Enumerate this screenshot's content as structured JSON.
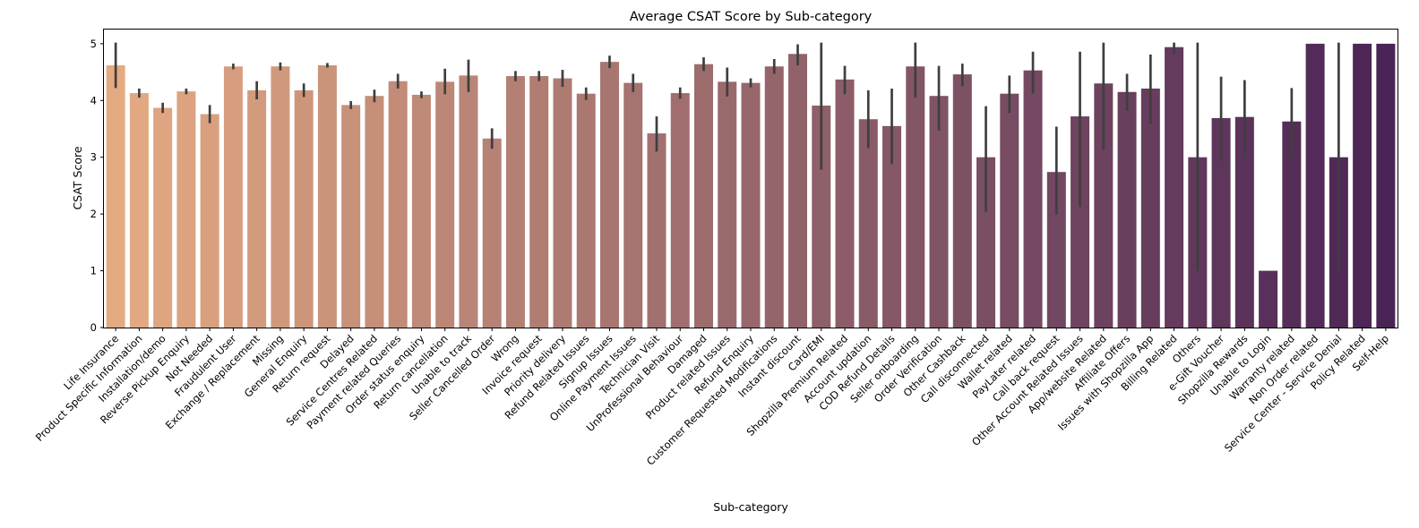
{
  "chart_data": {
    "type": "bar",
    "title": "Average CSAT Score by Sub-category",
    "xlabel": "Sub-category",
    "ylabel": "CSAT Score",
    "ylim": [
      0,
      5.25
    ],
    "yticks": [
      0,
      1,
      2,
      3,
      4,
      5
    ],
    "grid": false,
    "legend": "none",
    "palette": "flare",
    "categories": [
      "Life Insurance",
      "Product Specific Information",
      "Installation/demo",
      "Reverse Pickup Enquiry",
      "Not Needed",
      "Fraudulent User",
      "Exchange / Replacement",
      "Missing",
      "General Enquiry",
      "Return request",
      "Delayed",
      "Service Centres Related",
      "Payment related Queries",
      "Order status enquiry",
      "Return cancellation",
      "Unable to track",
      "Seller Cancelled Order",
      "Wrong",
      "Invoice request",
      "Priority delivery",
      "Refund Related Issues",
      "Signup Issues",
      "Online Payment Issues",
      "Technician Visit",
      "UnProfessional Behaviour",
      "Damaged",
      "Product related Issues",
      "Refund Enquiry",
      "Customer Requested Modifications",
      "Instant discount",
      "Card/EMI",
      "Shopzilla Premium Related",
      "Account updation",
      "COD Refund Details",
      "Seller onboarding",
      "Order Verification",
      "Other Cashback",
      "Call disconnected",
      "Wallet related",
      "PayLater related",
      "Call back request",
      "Other Account Related Issues",
      "App/website Related",
      "Affiliate Offers",
      "Issues with Shopzilla App",
      "Billing Related",
      "Others",
      "e-Gift Voucher",
      "Shopzilla Rewards",
      "Unable to Login",
      "Warranty related",
      "Non Order related",
      "Service Center - Service Denial",
      "Policy Related",
      "Self-Help"
    ],
    "values": [
      4.62,
      4.13,
      3.87,
      4.16,
      3.76,
      4.6,
      4.18,
      4.6,
      4.18,
      4.62,
      3.92,
      4.08,
      4.34,
      4.1,
      4.33,
      4.44,
      3.33,
      4.43,
      4.43,
      4.39,
      4.12,
      4.68,
      4.31,
      3.42,
      4.13,
      4.64,
      4.33,
      4.31,
      4.6,
      4.82,
      3.91,
      4.37,
      3.67,
      3.55,
      4.6,
      4.08,
      4.46,
      3.0,
      4.12,
      4.53,
      2.74,
      3.72,
      4.3,
      4.15,
      4.21,
      4.94,
      3.0,
      3.69,
      3.71,
      1.0,
      3.63,
      5.0,
      3.0,
      5.0,
      5.0
    ],
    "error_low": [
      4.22,
      4.05,
      3.78,
      4.11,
      3.6,
      4.55,
      4.02,
      4.53,
      4.06,
      4.58,
      3.85,
      3.97,
      4.21,
      4.04,
      4.11,
      4.15,
      3.15,
      4.34,
      4.34,
      4.24,
      4.01,
      4.57,
      4.15,
      3.1,
      4.03,
      4.52,
      4.07,
      4.23,
      4.47,
      4.62,
      2.78,
      4.11,
      3.16,
      2.88,
      4.05,
      3.47,
      4.25,
      2.04,
      3.78,
      4.12,
      1.99,
      2.12,
      3.13,
      3.82,
      3.59,
      4.82,
      1.0,
      2.94,
      3.0,
      1.0,
      3.0,
      5.0,
      1.0,
      5.0,
      5.0
    ],
    "error_high": [
      5.02,
      4.21,
      3.96,
      4.21,
      3.92,
      4.65,
      4.34,
      4.67,
      4.3,
      4.66,
      3.99,
      4.19,
      4.47,
      4.16,
      4.56,
      4.72,
      3.51,
      4.52,
      4.52,
      4.54,
      4.23,
      4.79,
      4.47,
      3.72,
      4.23,
      4.76,
      4.58,
      4.39,
      4.73,
      4.99,
      5.02,
      4.61,
      4.18,
      4.21,
      5.02,
      4.61,
      4.65,
      3.9,
      4.44,
      4.86,
      3.54,
      4.86,
      5.02,
      4.47,
      4.81,
      5.02,
      5.02,
      4.42,
      4.36,
      1.0,
      4.22,
      5.0,
      5.02,
      5.0,
      5.0
    ],
    "color_start": "#e4aa82",
    "color_end": "#4a2455",
    "errorbar_color": "#3f3f3f"
  }
}
